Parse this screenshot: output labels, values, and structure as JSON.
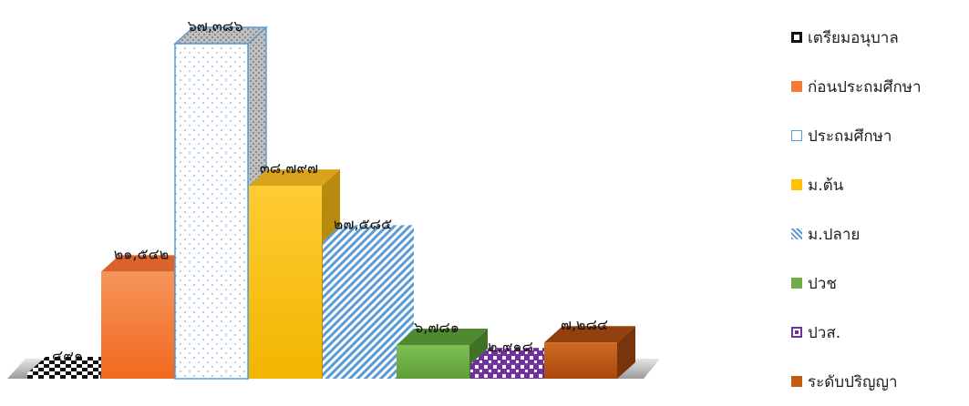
{
  "chart_data": {
    "type": "bar",
    "categories": [
      "เตรียมอนุบาล",
      "ก่อนประถมศึกษา",
      "ประถมศึกษา",
      "ม.ต้น",
      "ม.ปลาย",
      "ปวช",
      "ปวส.",
      "ระดับปริญญา"
    ],
    "values": [
      491,
      21542,
      67386,
      38797,
      27585,
      6781,
      2918,
      7284
    ],
    "data_labels": [
      "๔๙๑",
      "๒๑,๕๔๒",
      "๖๗,๓๘๖",
      "๓๘,๗๙๗",
      "๒๗,๕๘๕",
      "๖,๗๘๑",
      "๒,๙๑๘",
      "๗,๒๘๔"
    ],
    "ylim": [
      0,
      67386
    ],
    "grid": false,
    "legend_position": "right",
    "colors": [
      "#222222",
      "#f47b36",
      "#5b9bd5",
      "#ffc000",
      "#5b9bd5",
      "#70ad47",
      "#7030a0",
      "#c55a11"
    ]
  }
}
